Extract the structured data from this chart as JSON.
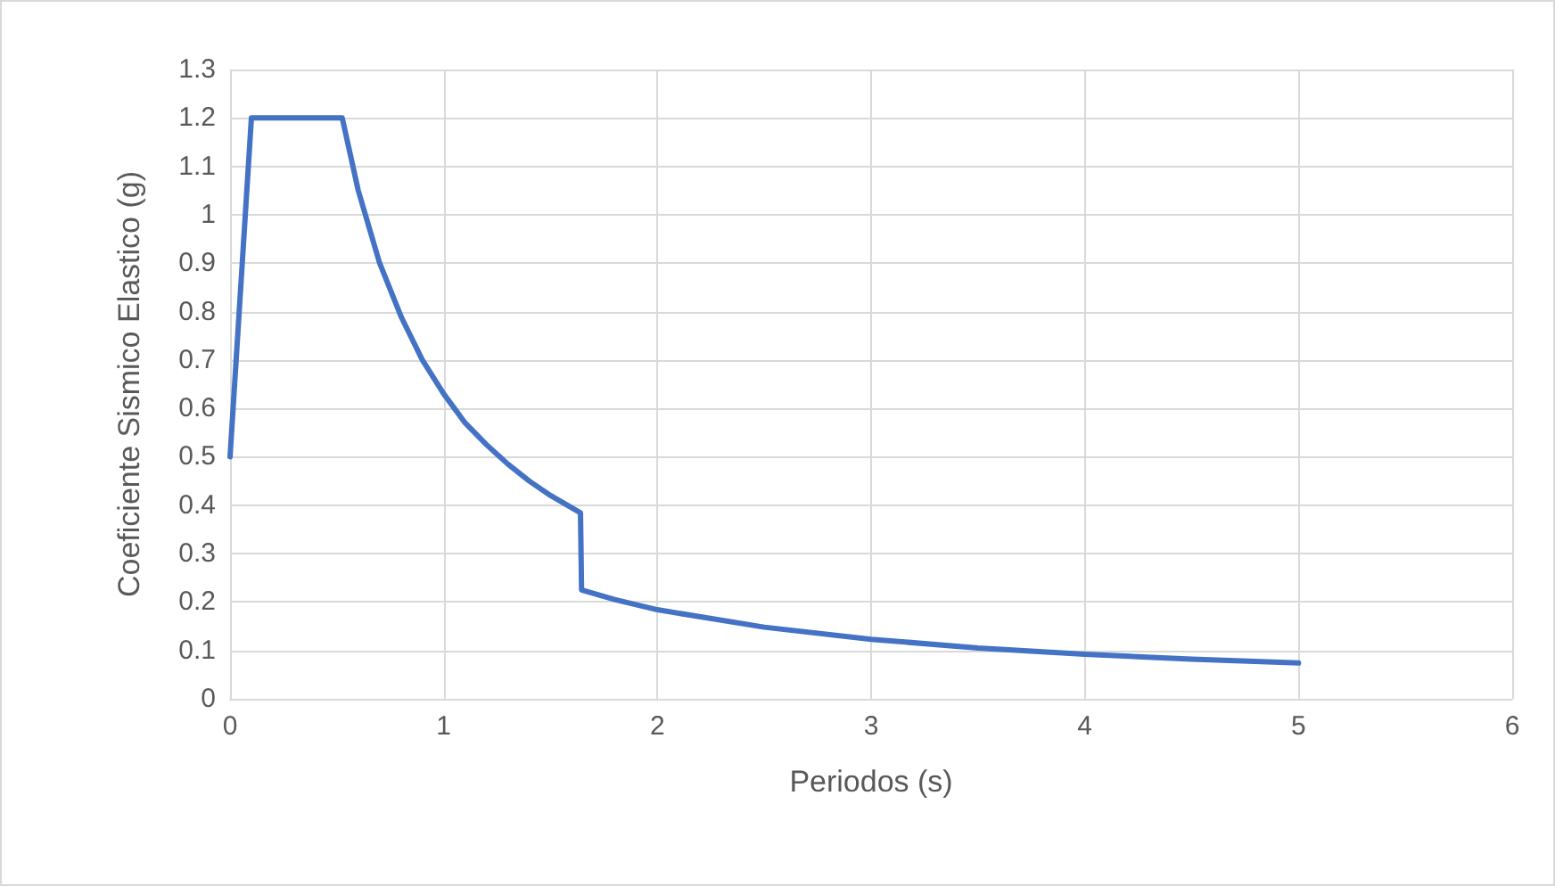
{
  "chart_data": {
    "type": "line",
    "xlabel": "Periodos (s)",
    "ylabel": "Coeficiente Sismico Elastico (g)",
    "series": [
      {
        "color": "#4472c4",
        "x": [
          0,
          0.1,
          0.525,
          0.6,
          0.7,
          0.8,
          0.9,
          1.0,
          1.1,
          1.2,
          1.3,
          1.4,
          1.5,
          1.64,
          1.645,
          1.8,
          2,
          2.5,
          3,
          3.5,
          4,
          4.5,
          5
        ],
        "values": [
          0.5,
          1.2,
          1.2,
          1.05,
          0.9,
          0.79,
          0.7,
          0.63,
          0.57,
          0.525,
          0.485,
          0.45,
          0.42,
          0.384,
          0.225,
          0.205,
          0.184,
          0.148,
          0.123,
          0.105,
          0.092,
          0.082,
          0.074
        ]
      }
    ],
    "xlim": [
      0,
      6
    ],
    "xticks": [
      0,
      1,
      2,
      3,
      4,
      5,
      6
    ],
    "ylim": [
      0,
      1.3
    ],
    "yticks": [
      0,
      0.1,
      0.2,
      0.3,
      0.4,
      0.5,
      0.6,
      0.7,
      0.8,
      0.9,
      1,
      1.1,
      1.2,
      1.3
    ],
    "grid": true,
    "marker": "none",
    "line_style": "solid"
  }
}
